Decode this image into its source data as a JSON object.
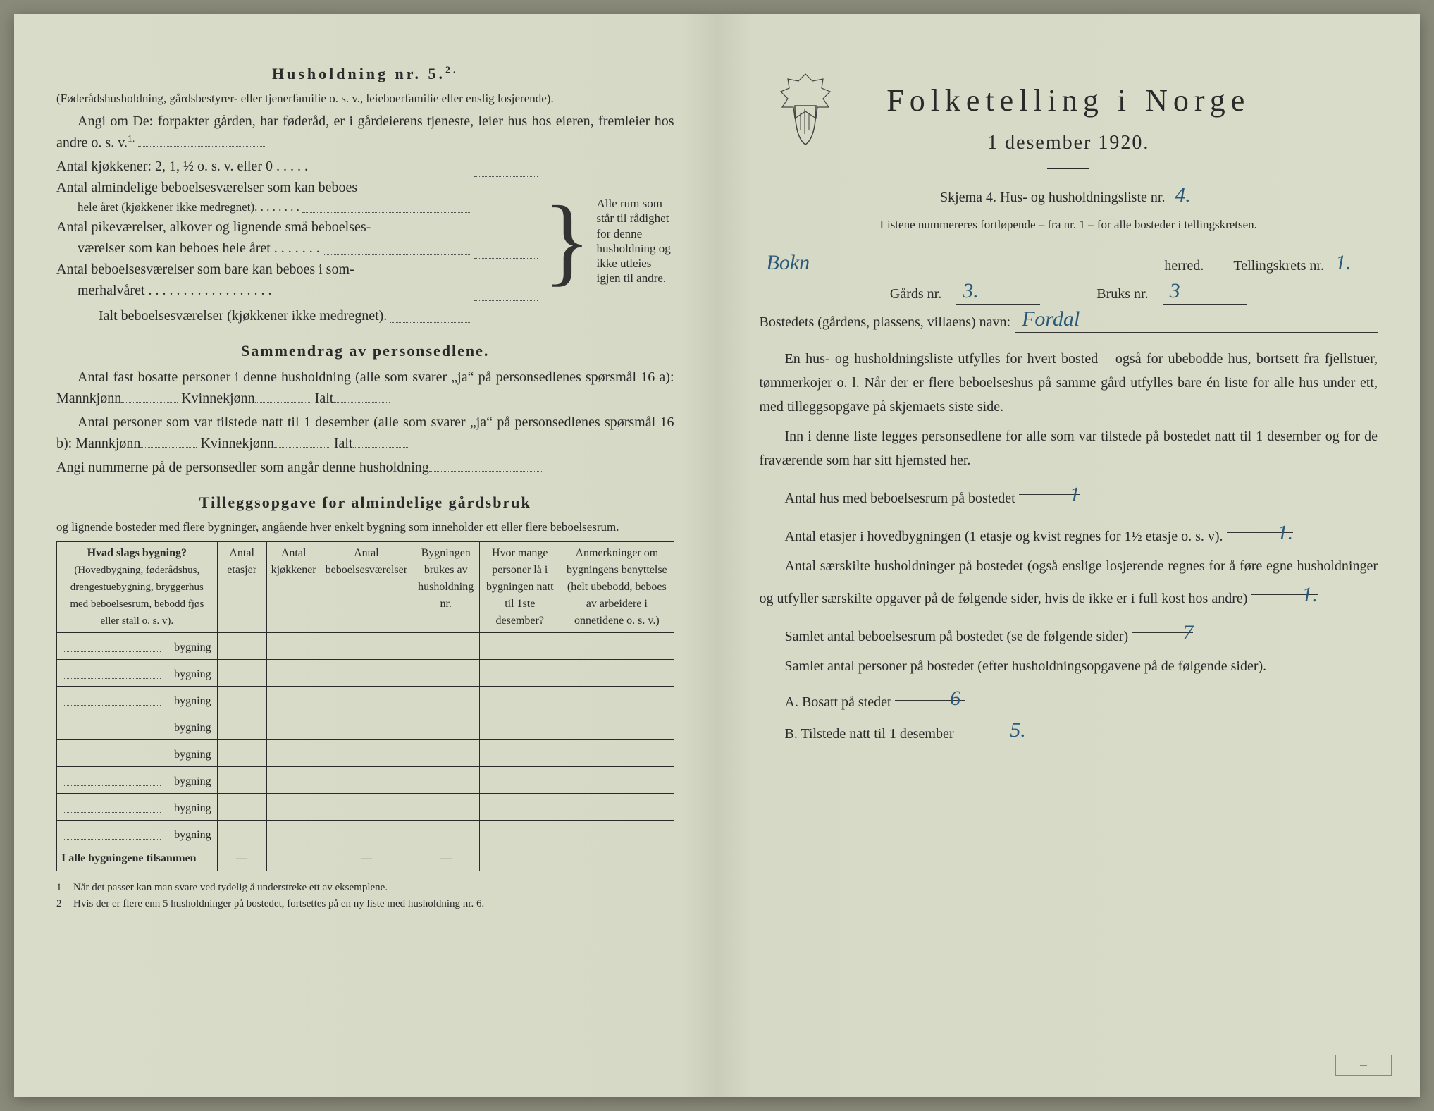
{
  "colors": {
    "paper": "#d8dcc8",
    "ink": "#2a2a2a",
    "handwriting": "#2a5a7a"
  },
  "leftPage": {
    "household": {
      "heading": "Husholdning nr. 5.",
      "headingSup": "2.",
      "intro": "(Føderådshusholdning, gårdsbestyrer- eller tjenerfamilie o. s. v., leieboerfamilie eller enslig losjerende).",
      "angi": "Angi om De: forpakter gården, har føderåd, er i gårdeierens tjeneste, leier hus hos eieren, fremleier hos andre o. s. v.",
      "angiSup": "1.",
      "rows": {
        "r1": "Antal kjøkkener: 2, 1, ½ o. s. v. eller 0 . . . . .",
        "r2a": "Antal almindelige beboelsesværelser som kan beboes",
        "r2b": "hele året (kjøkkener ikke medregnet). . . . . . . .",
        "r3a": "Antal pikeværelser, alkover og lignende små beboelses-",
        "r3b": "værelser som kan beboes hele året . . . . . . .",
        "r4a": "Antal beboelsesværelser som bare kan beboes i som-",
        "r4b": "merhalvåret . . . . . . . . . . . . . . . . . .",
        "r5": "Ialt beboelsesværelser (kjøkkener ikke medregnet)."
      },
      "braceNote": "Alle rum som står til rådighet for denne husholdning og ikke utleies igjen til andre."
    },
    "summary": {
      "heading": "Sammendrag av personsedlene.",
      "p1a": "Antal fast bosatte personer i denne husholdning (alle som svarer „ja“ på personsedlenes spørsmål 16 a): Mannkjønn",
      "p1b": "Kvinnekjønn",
      "p1c": "Ialt",
      "p2a": "Antal personer som var tilstede natt til 1 desember (alle som svarer „ja“ på personsedlenes spørsmål 16 b): Mannkjønn",
      "p2b": "Kvinnekjønn",
      "p2c": "Ialt",
      "p3": "Angi nummerne på de personsedler som angår denne husholdning"
    },
    "tillegg": {
      "heading": "Tilleggsopgave for almindelige gårdsbruk",
      "sub": "og lignende bosteder med flere bygninger, angående hver enkelt bygning som inneholder ett eller flere beboelsesrum."
    },
    "table": {
      "headers": {
        "c1a": "Hvad slags bygning?",
        "c1b": "(Hovedbygning, føderådshus, drengestuebygning, bryggerhus med beboelsesrum, bebodd fjøs eller stall o. s. v).",
        "c2": "Antal etasjer",
        "c3": "Antal kjøkkener",
        "c4": "Antal beboelsesværelser",
        "c5": "Bygningen brukes av husholdning nr.",
        "c6": "Hvor mange personer lå i bygningen natt til 1ste desember?",
        "c7": "Anmerkninger om bygningens benyttelse (helt ubebodd, beboes av arbeidere i onnetidene o. s. v.)"
      },
      "rowLabel": "bygning",
      "rowCount": 8,
      "sumRow": "I alle bygningene tilsammen"
    },
    "footnotes": {
      "f1": "Når det passer kan man svare ved tydelig å understreke ett av eksemplene.",
      "f2": "Hvis der er flere enn 5 husholdninger på bostedet, fortsettes på en ny liste med husholdning nr. 6."
    }
  },
  "rightPage": {
    "title": "Folketelling i Norge",
    "subtitle": "1 desember 1920.",
    "skjema": "Skjema 4.  Hus- og husholdningsliste nr.",
    "listNr": "4.",
    "listNote": "Listene nummereres fortløpende – fra nr. 1 – for alle bosteder i tellingskretsen.",
    "herredLabel": "herred.",
    "herredValue": "Bokn",
    "kretsLabel": "Tellingskrets nr.",
    "kretsValue": "1.",
    "gardsLabel": "Gårds nr.",
    "gardsValue": "3.",
    "bruksLabel": "Bruks nr.",
    "bruksValue": "3",
    "bostedLabel": "Bostedets (gårdens, plassens, villaens) navn:",
    "bostedValue": "Fordal",
    "body": {
      "p1": "En hus- og husholdningsliste utfylles for hvert bosted – også for ubebodde hus, bortsett fra fjellstuer, tømmerkojer o. l. Når der er flere beboelseshus på samme gård utfylles bare én liste for alle hus under ett, med tilleggsopgave på skjemaets siste side.",
      "p2": "Inn i denne liste legges personsedlene for alle som var tilstede på bostedet natt til 1 desember og for de fraværende som har sitt hjemsted her.",
      "q1": "Antal hus med beboelsesrum på bostedet",
      "q1v": "1",
      "q2": "Antal etasjer i hovedbygningen (1 etasje og kvist regnes for 1½ etasje o. s. v).",
      "q2v": "1.",
      "q3": "Antal særskilte husholdninger på bostedet (også enslige losjerende regnes for å føre egne husholdninger og utfyller særskilte opgaver på de følgende sider, hvis de ikke er i full kost hos andre)",
      "q3v": "1.",
      "q4": "Samlet antal beboelsesrum på bostedet (se de følgende sider)",
      "q4v": "7",
      "q5": "Samlet antal personer på bostedet (efter husholdningsopgavene på de følgende sider).",
      "qA": "A.  Bosatt på stedet",
      "qAv": "6",
      "qB": "B.  Tilstede natt til 1 desember",
      "qBv": "5."
    }
  }
}
